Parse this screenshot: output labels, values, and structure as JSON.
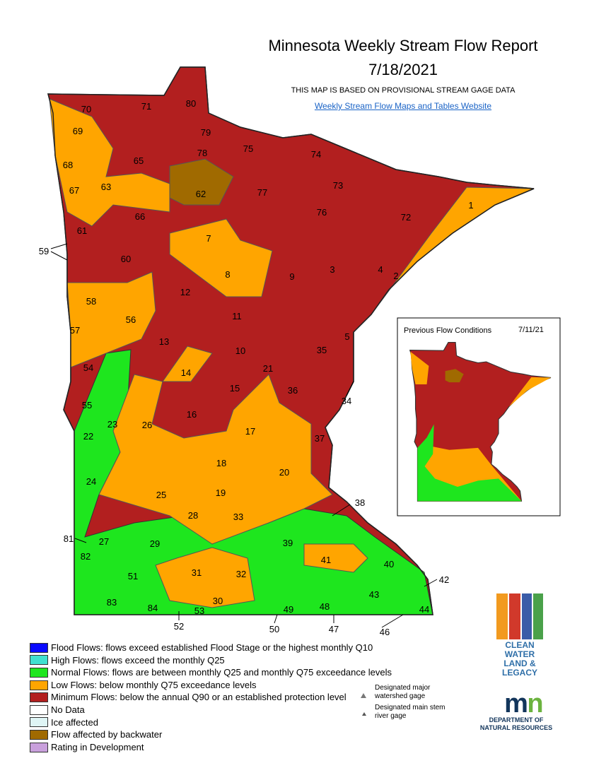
{
  "header": {
    "title": "Minnesota Weekly Stream Flow Report",
    "date": "7/18/2021",
    "note": "THIS MAP IS BASED ON PROVISIONAL STREAM GAGE DATA",
    "link": "Weekly Stream Flow Maps and Tables Website"
  },
  "map": {
    "labels": [
      "1",
      "2",
      "3",
      "4",
      "5",
      "7",
      "8",
      "9",
      "10",
      "11",
      "12",
      "13",
      "14",
      "15",
      "16",
      "17",
      "18",
      "19",
      "20",
      "21",
      "22",
      "23",
      "24",
      "25",
      "26",
      "27",
      "28",
      "29",
      "30",
      "31",
      "32",
      "33",
      "34",
      "35",
      "36",
      "37",
      "38",
      "39",
      "40",
      "41",
      "42",
      "43",
      "44",
      "46",
      "47",
      "48",
      "49",
      "50",
      "51",
      "52",
      "53",
      "54",
      "55",
      "56",
      "57",
      "58",
      "59",
      "60",
      "61",
      "62",
      "63",
      "65",
      "66",
      "67",
      "68",
      "69",
      "70",
      "71",
      "72",
      "73",
      "74",
      "75",
      "76",
      "77",
      "78",
      "79",
      "80",
      "81",
      "82",
      "83",
      "84"
    ]
  },
  "inset": {
    "title": "Previous Flow Conditions",
    "date": "7/11/21"
  },
  "legend": {
    "items": [
      {
        "label": "Flood Flows: flows exceed established Flood Stage or the highest monthly Q10",
        "color": "#0a0aff"
      },
      {
        "label": "High Flows: flows exceed the monthly Q25",
        "color": "#40e0d0"
      },
      {
        "label": "Normal Flows: flows are between monthly Q25 and monthly Q75 exceedance levels",
        "color": "#1ee61e"
      },
      {
        "label": "Low Flows: below monthly Q75 exceedance levels",
        "color": "#ffa500"
      },
      {
        "label": "Minimum Flows: below the annual Q90 or an established protection level",
        "color": "#b21f1f"
      },
      {
        "label": "No Data",
        "color": "#ffffff"
      },
      {
        "label": "Ice affected",
        "color": "#dff5f5"
      },
      {
        "label": "Flow affected by backwater",
        "color": "#a06a00"
      },
      {
        "label": "Rating in Development",
        "color": "#c9a0dc"
      }
    ],
    "gages": [
      "Designated major watershed gage",
      "Designated main stem river gage"
    ]
  },
  "logos": {
    "clean_water": [
      "CLEAN",
      "WATER",
      "LAND &",
      "LEGACY"
    ],
    "dnr": [
      "DEPARTMENT OF",
      "NATURAL RESOURCES"
    ]
  }
}
